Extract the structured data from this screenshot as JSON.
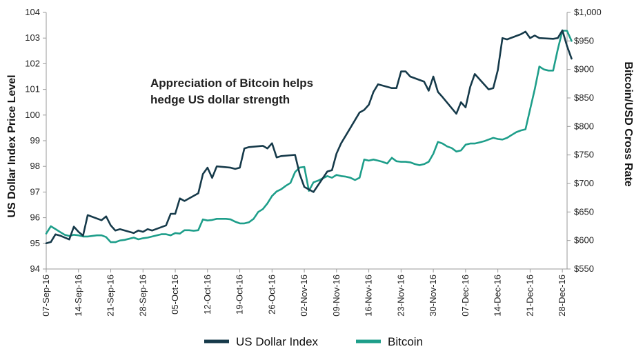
{
  "chart_data": {
    "type": "line",
    "ylabel_left": "US Dollar Index Price Level",
    "ylabel_right": "Bitcoin/USD Cross Rate",
    "annotation_lines": [
      "Appreciation of Bitcoin helps",
      "hedge US dollar strength"
    ],
    "ylim_left": [
      94,
      104
    ],
    "ylim_right": [
      550,
      1000
    ],
    "xlim": [
      "2016-09-07",
      "2017-01-02"
    ],
    "left_ticks": [
      "94",
      "95",
      "96",
      "97",
      "98",
      "99",
      "100",
      "101",
      "102",
      "103",
      "104"
    ],
    "right_ticks": [
      "$550",
      "$600",
      "$650",
      "$700",
      "$750",
      "$800",
      "$850",
      "$900",
      "$950",
      "$1,000"
    ],
    "x_ticks": [
      {
        "date": "2016-09-07",
        "label": "07-Sep-16"
      },
      {
        "date": "2016-09-14",
        "label": "14-Sep-16"
      },
      {
        "date": "2016-09-21",
        "label": "21-Sep-16"
      },
      {
        "date": "2016-09-28",
        "label": "28-Sep-16"
      },
      {
        "date": "2016-10-05",
        "label": "05-Oct-16"
      },
      {
        "date": "2016-10-12",
        "label": "12-Oct-16"
      },
      {
        "date": "2016-10-19",
        "label": "19-Oct-16"
      },
      {
        "date": "2016-10-26",
        "label": "26-Oct-16"
      },
      {
        "date": "2016-11-02",
        "label": "02-Nov-16"
      },
      {
        "date": "2016-11-09",
        "label": "09-Nov-16"
      },
      {
        "date": "2016-11-16",
        "label": "16-Nov-16"
      },
      {
        "date": "2016-11-23",
        "label": "23-Nov-16"
      },
      {
        "date": "2016-11-30",
        "label": "30-Nov-16"
      },
      {
        "date": "2016-12-07",
        "label": "07-Dec-16"
      },
      {
        "date": "2016-12-14",
        "label": "14-Dec-16"
      },
      {
        "date": "2016-12-21",
        "label": "21-Dec-16"
      },
      {
        "date": "2016-12-28",
        "label": "28-Dec-16"
      }
    ],
    "series": [
      {
        "name": "US Dollar Index",
        "axis": "left",
        "color": "#163a4a",
        "points": [
          [
            "2016-09-07",
            95.0
          ],
          [
            "2016-09-08",
            95.05
          ],
          [
            "2016-09-09",
            95.35
          ],
          [
            "2016-09-10",
            95.3
          ],
          [
            "2016-09-12",
            95.15
          ],
          [
            "2016-09-13",
            95.65
          ],
          [
            "2016-09-14",
            95.45
          ],
          [
            "2016-09-15",
            95.3
          ],
          [
            "2016-09-16",
            96.1
          ],
          [
            "2016-09-19",
            95.9
          ],
          [
            "2016-09-20",
            96.05
          ],
          [
            "2016-09-21",
            95.7
          ],
          [
            "2016-09-22",
            95.5
          ],
          [
            "2016-09-23",
            95.55
          ],
          [
            "2016-09-26",
            95.4
          ],
          [
            "2016-09-27",
            95.5
          ],
          [
            "2016-09-28",
            95.45
          ],
          [
            "2016-09-29",
            95.55
          ],
          [
            "2016-09-30",
            95.5
          ],
          [
            "2016-10-03",
            95.7
          ],
          [
            "2016-10-04",
            96.15
          ],
          [
            "2016-10-05",
            96.15
          ],
          [
            "2016-10-06",
            96.75
          ],
          [
            "2016-10-07",
            96.65
          ],
          [
            "2016-10-10",
            96.95
          ],
          [
            "2016-10-11",
            97.7
          ],
          [
            "2016-10-12",
            97.95
          ],
          [
            "2016-10-13",
            97.55
          ],
          [
            "2016-10-14",
            98.0
          ],
          [
            "2016-10-17",
            97.95
          ],
          [
            "2016-10-18",
            97.9
          ],
          [
            "2016-10-19",
            97.95
          ],
          [
            "2016-10-20",
            98.7
          ],
          [
            "2016-10-21",
            98.75
          ],
          [
            "2016-10-24",
            98.8
          ],
          [
            "2016-10-25",
            98.7
          ],
          [
            "2016-10-26",
            98.9
          ],
          [
            "2016-10-27",
            98.35
          ],
          [
            "2016-10-28",
            98.4
          ],
          [
            "2016-10-31",
            98.45
          ],
          [
            "2016-11-01",
            97.7
          ],
          [
            "2016-11-02",
            97.2
          ],
          [
            "2016-11-03",
            97.1
          ],
          [
            "2016-11-04",
            97.0
          ],
          [
            "2016-11-07",
            97.8
          ],
          [
            "2016-11-08",
            97.85
          ],
          [
            "2016-11-09",
            98.5
          ],
          [
            "2016-11-10",
            98.9
          ],
          [
            "2016-11-11",
            99.2
          ],
          [
            "2016-11-14",
            100.1
          ],
          [
            "2016-11-15",
            100.2
          ],
          [
            "2016-11-16",
            100.4
          ],
          [
            "2016-11-17",
            100.9
          ],
          [
            "2016-11-18",
            101.2
          ],
          [
            "2016-11-21",
            101.05
          ],
          [
            "2016-11-22",
            101.05
          ],
          [
            "2016-11-23",
            101.7
          ],
          [
            "2016-11-24",
            101.7
          ],
          [
            "2016-11-25",
            101.5
          ],
          [
            "2016-11-28",
            101.3
          ],
          [
            "2016-11-29",
            100.95
          ],
          [
            "2016-11-30",
            101.5
          ],
          [
            "2016-12-01",
            100.9
          ],
          [
            "2016-12-02",
            100.7
          ],
          [
            "2016-12-05",
            100.05
          ],
          [
            "2016-12-06",
            100.5
          ],
          [
            "2016-12-07",
            100.3
          ],
          [
            "2016-12-08",
            101.1
          ],
          [
            "2016-12-09",
            101.6
          ],
          [
            "2016-12-12",
            101.0
          ],
          [
            "2016-12-13",
            101.05
          ],
          [
            "2016-12-14",
            101.75
          ],
          [
            "2016-12-15",
            103.0
          ],
          [
            "2016-12-16",
            102.95
          ],
          [
            "2016-12-19",
            103.15
          ],
          [
            "2016-12-20",
            103.25
          ],
          [
            "2016-12-21",
            103.0
          ],
          [
            "2016-12-22",
            103.1
          ],
          [
            "2016-12-23",
            103.0
          ],
          [
            "2016-12-26",
            102.97
          ],
          [
            "2016-12-27",
            103.0
          ],
          [
            "2016-12-28",
            103.3
          ],
          [
            "2016-12-29",
            102.7
          ],
          [
            "2016-12-30",
            102.2
          ]
        ]
      },
      {
        "name": "Bitcoin",
        "axis": "right",
        "color": "#1e9e8a",
        "points": [
          [
            "2016-09-07",
            612
          ],
          [
            "2016-09-08",
            625
          ],
          [
            "2016-09-09",
            620
          ],
          [
            "2016-09-10",
            615
          ],
          [
            "2016-09-11",
            610
          ],
          [
            "2016-09-12",
            608
          ],
          [
            "2016-09-13",
            610
          ],
          [
            "2016-09-14",
            609
          ],
          [
            "2016-09-15",
            607
          ],
          [
            "2016-09-16",
            607
          ],
          [
            "2016-09-17",
            608
          ],
          [
            "2016-09-18",
            609
          ],
          [
            "2016-09-19",
            609
          ],
          [
            "2016-09-20",
            606
          ],
          [
            "2016-09-21",
            597
          ],
          [
            "2016-09-22",
            597
          ],
          [
            "2016-09-23",
            600
          ],
          [
            "2016-09-24",
            601
          ],
          [
            "2016-09-25",
            603
          ],
          [
            "2016-09-26",
            605
          ],
          [
            "2016-09-27",
            602
          ],
          [
            "2016-09-28",
            604
          ],
          [
            "2016-09-29",
            605
          ],
          [
            "2016-09-30",
            607
          ],
          [
            "2016-10-01",
            609
          ],
          [
            "2016-10-02",
            611
          ],
          [
            "2016-10-03",
            611
          ],
          [
            "2016-10-04",
            609
          ],
          [
            "2016-10-05",
            613
          ],
          [
            "2016-10-06",
            612
          ],
          [
            "2016-10-07",
            618
          ],
          [
            "2016-10-08",
            618
          ],
          [
            "2016-10-09",
            617
          ],
          [
            "2016-10-10",
            618
          ],
          [
            "2016-10-11",
            637
          ],
          [
            "2016-10-12",
            635
          ],
          [
            "2016-10-13",
            636
          ],
          [
            "2016-10-14",
            638
          ],
          [
            "2016-10-15",
            638
          ],
          [
            "2016-10-16",
            638
          ],
          [
            "2016-10-17",
            637
          ],
          [
            "2016-10-18",
            633
          ],
          [
            "2016-10-19",
            630
          ],
          [
            "2016-10-20",
            630
          ],
          [
            "2016-10-21",
            632
          ],
          [
            "2016-10-22",
            638
          ],
          [
            "2016-10-23",
            650
          ],
          [
            "2016-10-24",
            655
          ],
          [
            "2016-10-25",
            665
          ],
          [
            "2016-10-26",
            678
          ],
          [
            "2016-10-27",
            686
          ],
          [
            "2016-10-28",
            690
          ],
          [
            "2016-10-29",
            696
          ],
          [
            "2016-10-30",
            701
          ],
          [
            "2016-10-31",
            720
          ],
          [
            "2016-11-01",
            728
          ],
          [
            "2016-11-02",
            729
          ],
          [
            "2016-11-03",
            687
          ],
          [
            "2016-11-04",
            702
          ],
          [
            "2016-11-05",
            705
          ],
          [
            "2016-11-06",
            709
          ],
          [
            "2016-11-07",
            713
          ],
          [
            "2016-11-08",
            710
          ],
          [
            "2016-11-09",
            715
          ],
          [
            "2016-11-10",
            713
          ],
          [
            "2016-11-11",
            712
          ],
          [
            "2016-11-12",
            710
          ],
          [
            "2016-11-13",
            706
          ],
          [
            "2016-11-14",
            710
          ],
          [
            "2016-11-15",
            742
          ],
          [
            "2016-11-16",
            740
          ],
          [
            "2016-11-17",
            742
          ],
          [
            "2016-11-18",
            740
          ],
          [
            "2016-11-19",
            738
          ],
          [
            "2016-11-20",
            735
          ],
          [
            "2016-11-21",
            745
          ],
          [
            "2016-11-22",
            739
          ],
          [
            "2016-11-23",
            738
          ],
          [
            "2016-11-24",
            738
          ],
          [
            "2016-11-25",
            737
          ],
          [
            "2016-11-26",
            734
          ],
          [
            "2016-11-27",
            732
          ],
          [
            "2016-11-28",
            734
          ],
          [
            "2016-11-29",
            738
          ],
          [
            "2016-11-30",
            752
          ],
          [
            "2016-12-01",
            773
          ],
          [
            "2016-12-02",
            770
          ],
          [
            "2016-12-03",
            765
          ],
          [
            "2016-12-04",
            762
          ],
          [
            "2016-12-05",
            756
          ],
          [
            "2016-12-06",
            758
          ],
          [
            "2016-12-07",
            768
          ],
          [
            "2016-12-08",
            770
          ],
          [
            "2016-12-09",
            770
          ],
          [
            "2016-12-10",
            772
          ],
          [
            "2016-12-11",
            774
          ],
          [
            "2016-12-12",
            777
          ],
          [
            "2016-12-13",
            780
          ],
          [
            "2016-12-14",
            778
          ],
          [
            "2016-12-15",
            777
          ],
          [
            "2016-12-16",
            780
          ],
          [
            "2016-12-17",
            785
          ],
          [
            "2016-12-18",
            790
          ],
          [
            "2016-12-19",
            793
          ],
          [
            "2016-12-20",
            795
          ],
          [
            "2016-12-21",
            830
          ],
          [
            "2016-12-22",
            865
          ],
          [
            "2016-12-23",
            905
          ],
          [
            "2016-12-24",
            900
          ],
          [
            "2016-12-25",
            898
          ],
          [
            "2016-12-26",
            898
          ],
          [
            "2016-12-27",
            935
          ],
          [
            "2016-12-28",
            968
          ],
          [
            "2016-12-29",
            968
          ],
          [
            "2016-12-30",
            950
          ]
        ]
      }
    ],
    "legend_placement": "bottom",
    "grid": false
  }
}
